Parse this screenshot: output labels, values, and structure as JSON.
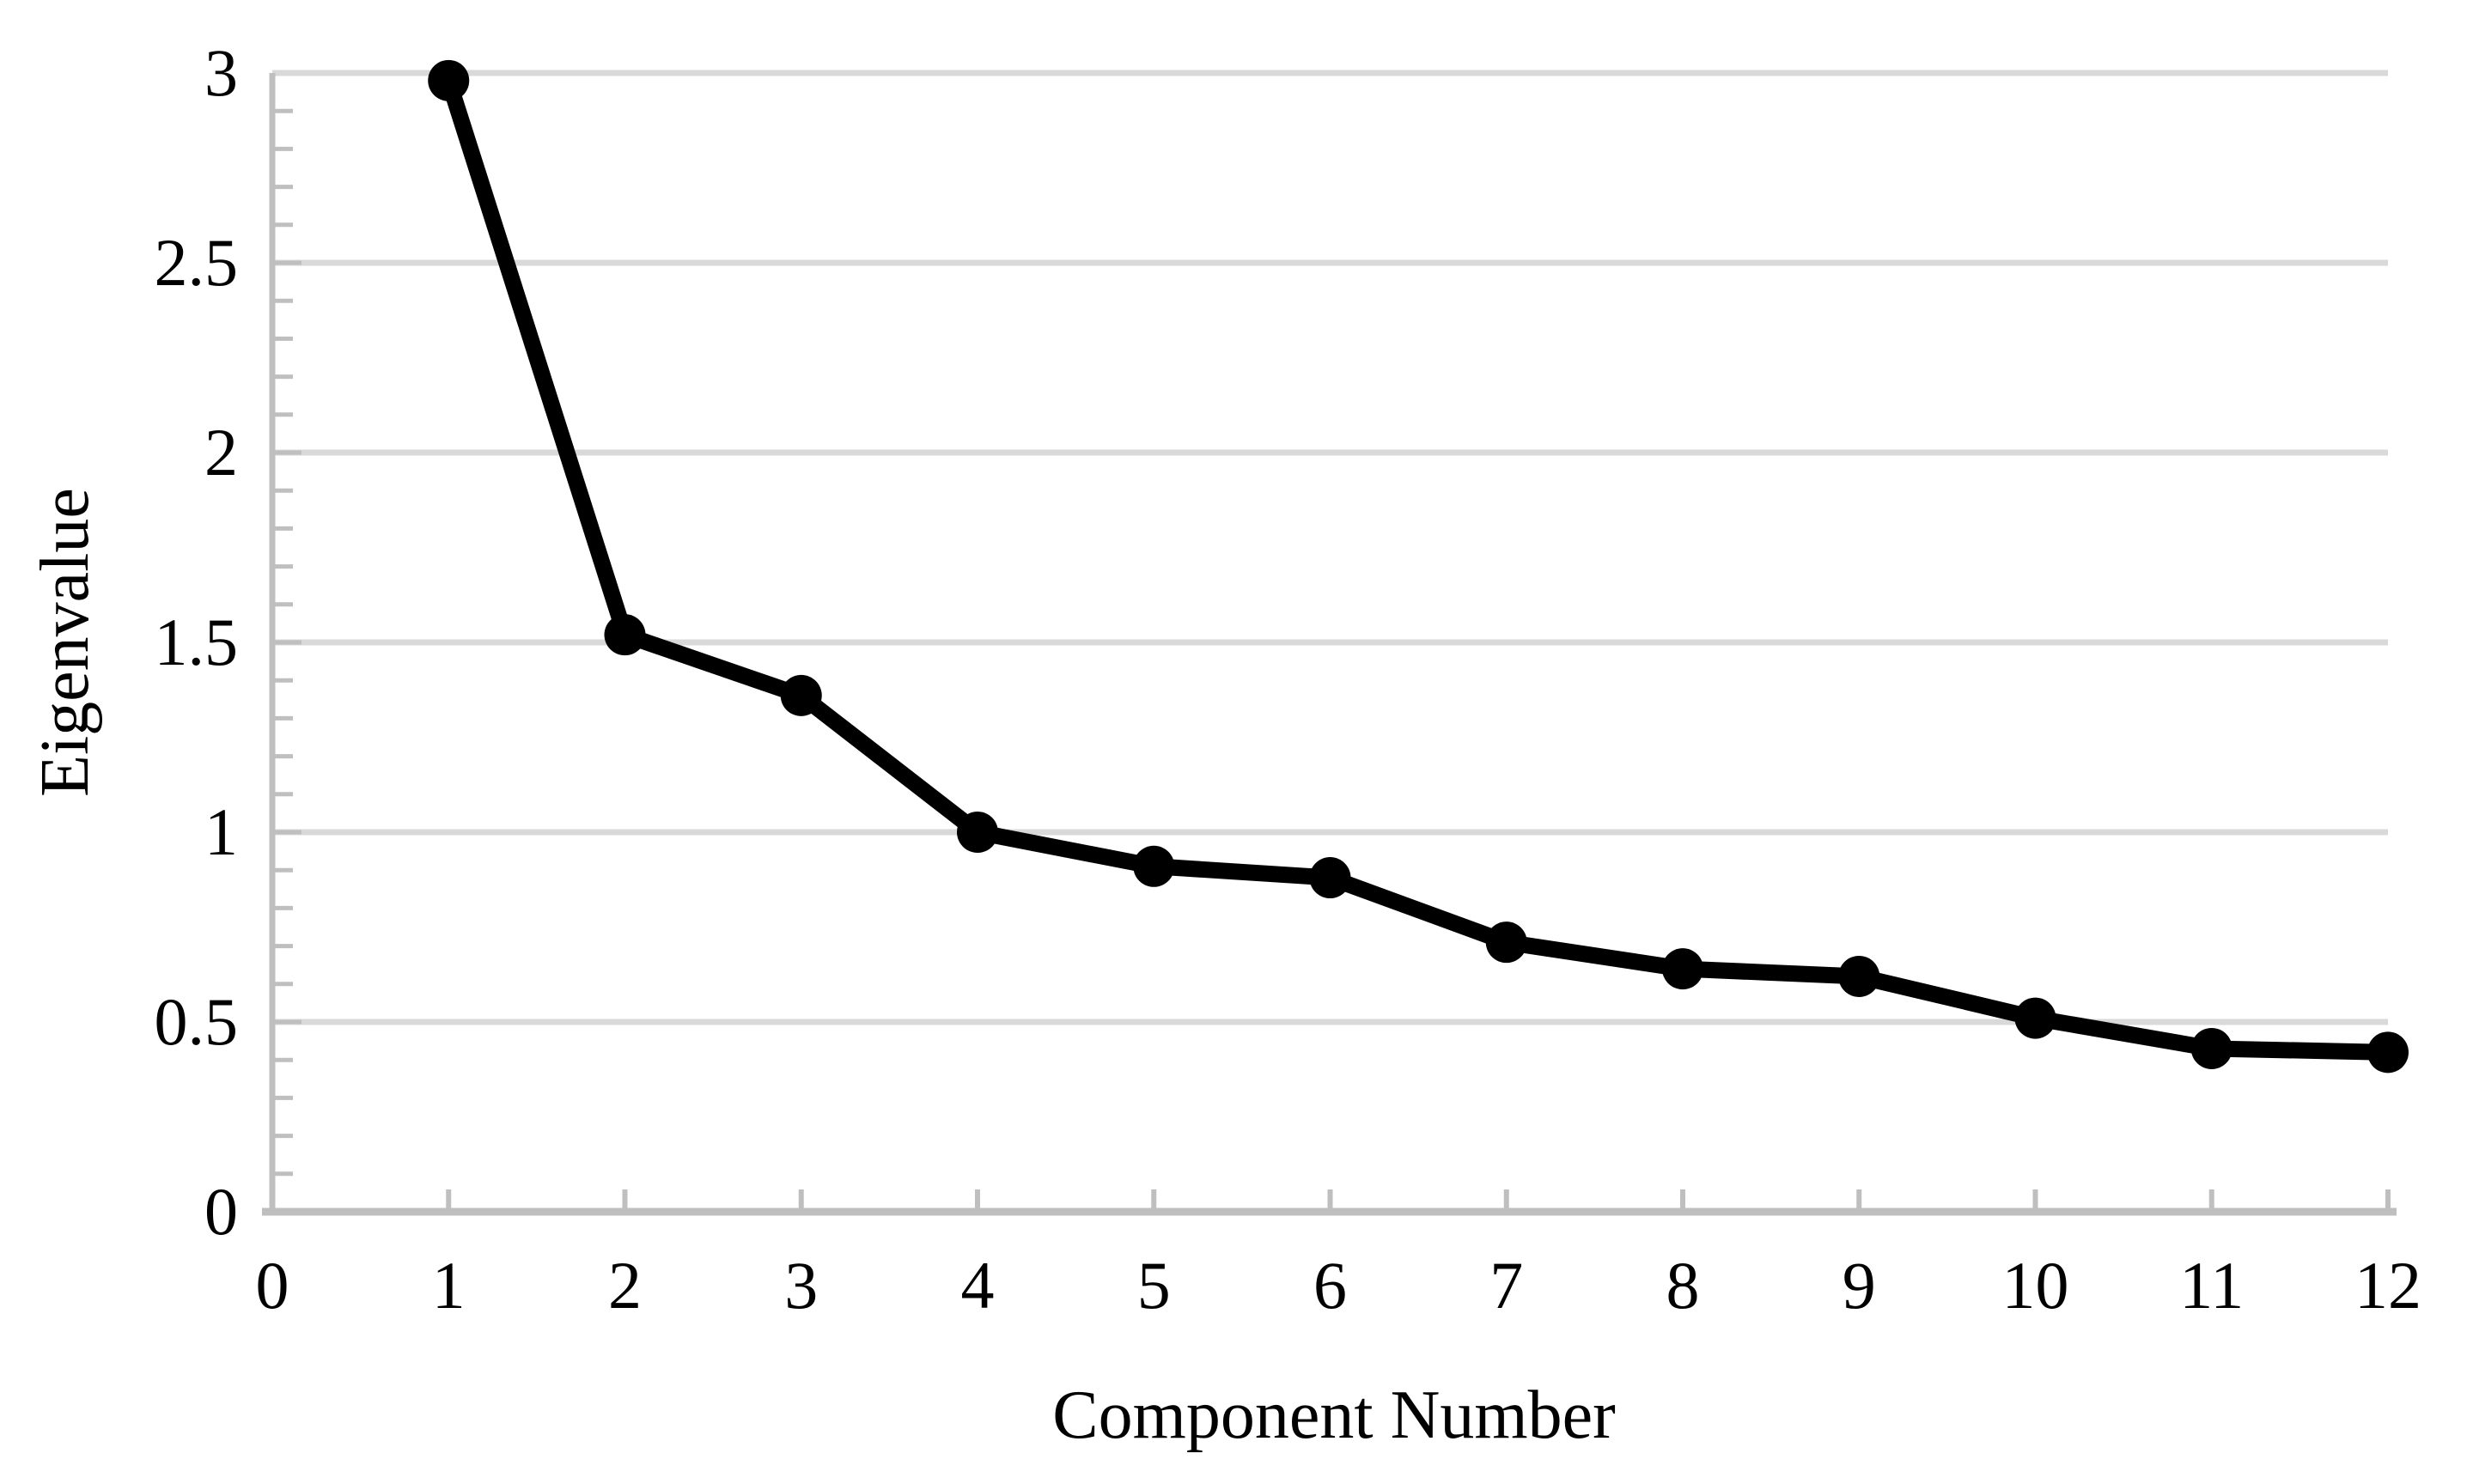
{
  "chart_data": {
    "type": "line",
    "xlabel": "Component Number",
    "ylabel": "Eigenvalue",
    "x": [
      1,
      2,
      3,
      4,
      5,
      6,
      7,
      8,
      9,
      10,
      11,
      12
    ],
    "values": [
      2.98,
      1.52,
      1.36,
      1.0,
      0.91,
      0.88,
      0.71,
      0.64,
      0.62,
      0.51,
      0.43,
      0.42
    ],
    "xlim": [
      0,
      12
    ],
    "ylim": [
      0,
      3
    ],
    "x_ticks": {
      "values": [
        0,
        1,
        2,
        3,
        4,
        5,
        6,
        7,
        8,
        9,
        10,
        11,
        12
      ],
      "labels": [
        "0",
        "1",
        "2",
        "3",
        "4",
        "5",
        "6",
        "7",
        "8",
        "9",
        "10",
        "11",
        "12"
      ]
    },
    "y_ticks": {
      "values": [
        0,
        0.5,
        1,
        1.5,
        2,
        2.5,
        3
      ],
      "labels": [
        "0",
        "0.5",
        "1",
        "1.5",
        "2",
        "2.5",
        "3"
      ]
    },
    "y_minor_tick_step": 0.1,
    "grid": "horizontal-major",
    "legend": "none",
    "marker": "circle",
    "colors": {
      "series": "#000000",
      "gridline": "#d9d9d9",
      "axis": "#bfbfbf",
      "background": "#ffffff",
      "text": "#000000"
    }
  }
}
